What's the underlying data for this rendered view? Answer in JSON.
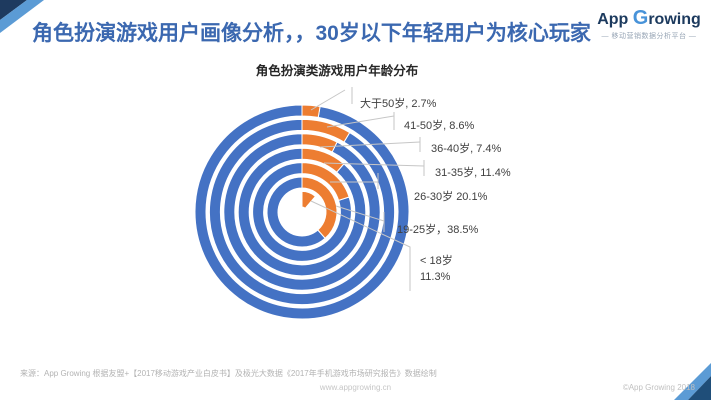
{
  "header": {
    "title": "角色扮演游戏用户画像分析，，30岁以下年轻用户为核心玩家",
    "logo": {
      "name_part1": "App ",
      "name_g": "G",
      "name_part2": "rowing",
      "tagline": "—  移动营销数据分析平台  —"
    }
  },
  "chart_data": {
    "type": "concentric-donut",
    "title": "角色扮演类游戏用户年龄分布",
    "ring_order": "outermost-to-innermost",
    "categories": [
      "大于50岁",
      "41-50岁",
      "36-40岁",
      "31-35岁",
      "26-30岁",
      "19-25岁",
      "<18岁"
    ],
    "values": [
      2.7,
      8.6,
      7.4,
      11.4,
      20.1,
      38.5,
      11.3
    ],
    "unit": "%",
    "display_labels": [
      "大于50岁, 2.7%",
      "41-50岁, 8.6%",
      "36-40岁, 7.4%",
      "31-35岁, 11.4%",
      "26-30岁  20.1%",
      "19-25岁，38.5%",
      "< 18岁",
      "11.3%"
    ],
    "colors": {
      "segment": "#ED7D31",
      "remainder": "#4472C4",
      "leader_line": "#C6C6C6"
    },
    "legend": "none",
    "start_angle_deg": 0,
    "direction": "clockwise"
  },
  "footer": {
    "source": "来源：App Growing 根据友盟+【2017移动游戏产业白皮书】及极光大数据《2017年手机游戏市场研究报告》数据绘制",
    "website": "www.appgrowing.cn",
    "copyright": "©App Growing 2018"
  }
}
